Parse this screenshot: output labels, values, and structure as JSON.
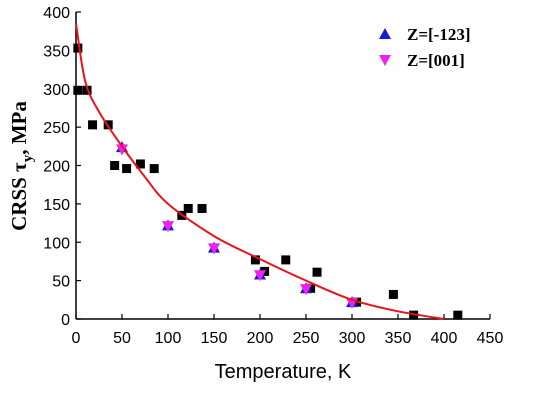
{
  "chart_data": {
    "type": "scatter",
    "xlabel": "Temperature, K",
    "ylabel": "CRSS τ",
    "ylabel_sub": "y",
    "ylabel_suffix": ", MPa",
    "xlim": [
      0,
      450
    ],
    "xticks": [
      0,
      50,
      100,
      150,
      200,
      250,
      300,
      350,
      400,
      450
    ],
    "ylim": [
      0,
      400
    ],
    "yticks": [
      0,
      50,
      100,
      150,
      200,
      250,
      300,
      350,
      400
    ],
    "legend": "upper right",
    "series": [
      {
        "mode": "line",
        "color": "#e8141b",
        "x": [
          0,
          10,
          25,
          50,
          75,
          100,
          150,
          200,
          250,
          300,
          350,
          400
        ],
        "values": [
          385,
          310,
          270,
          225,
          185,
          150,
          108,
          78,
          50,
          25,
          10,
          0
        ]
      },
      {
        "marker": "square",
        "color": "#000000",
        "x": [
          2,
          2,
          12,
          18,
          35,
          42,
          55,
          70,
          85,
          115,
          122,
          137,
          195,
          205,
          228,
          255,
          262,
          305,
          345,
          367,
          415
        ],
        "values": [
          353,
          298,
          298,
          253,
          253,
          200,
          196,
          202,
          196,
          135,
          144,
          144,
          77,
          62,
          77,
          40,
          61,
          22,
          32,
          5,
          5
        ]
      },
      {
        "name": "Z=[-123]",
        "marker": "triangle-up",
        "color": "#1a1adb",
        "x": [
          50,
          100,
          150,
          200,
          250,
          300
        ],
        "values": [
          224,
          122,
          93,
          58,
          40,
          22
        ]
      },
      {
        "name": "Z=[001]",
        "marker": "triangle-down",
        "color": "#f020f0",
        "x": [
          50,
          100,
          150,
          200,
          250,
          300
        ],
        "values": [
          221,
          121,
          92,
          57,
          39,
          21
        ]
      }
    ]
  }
}
